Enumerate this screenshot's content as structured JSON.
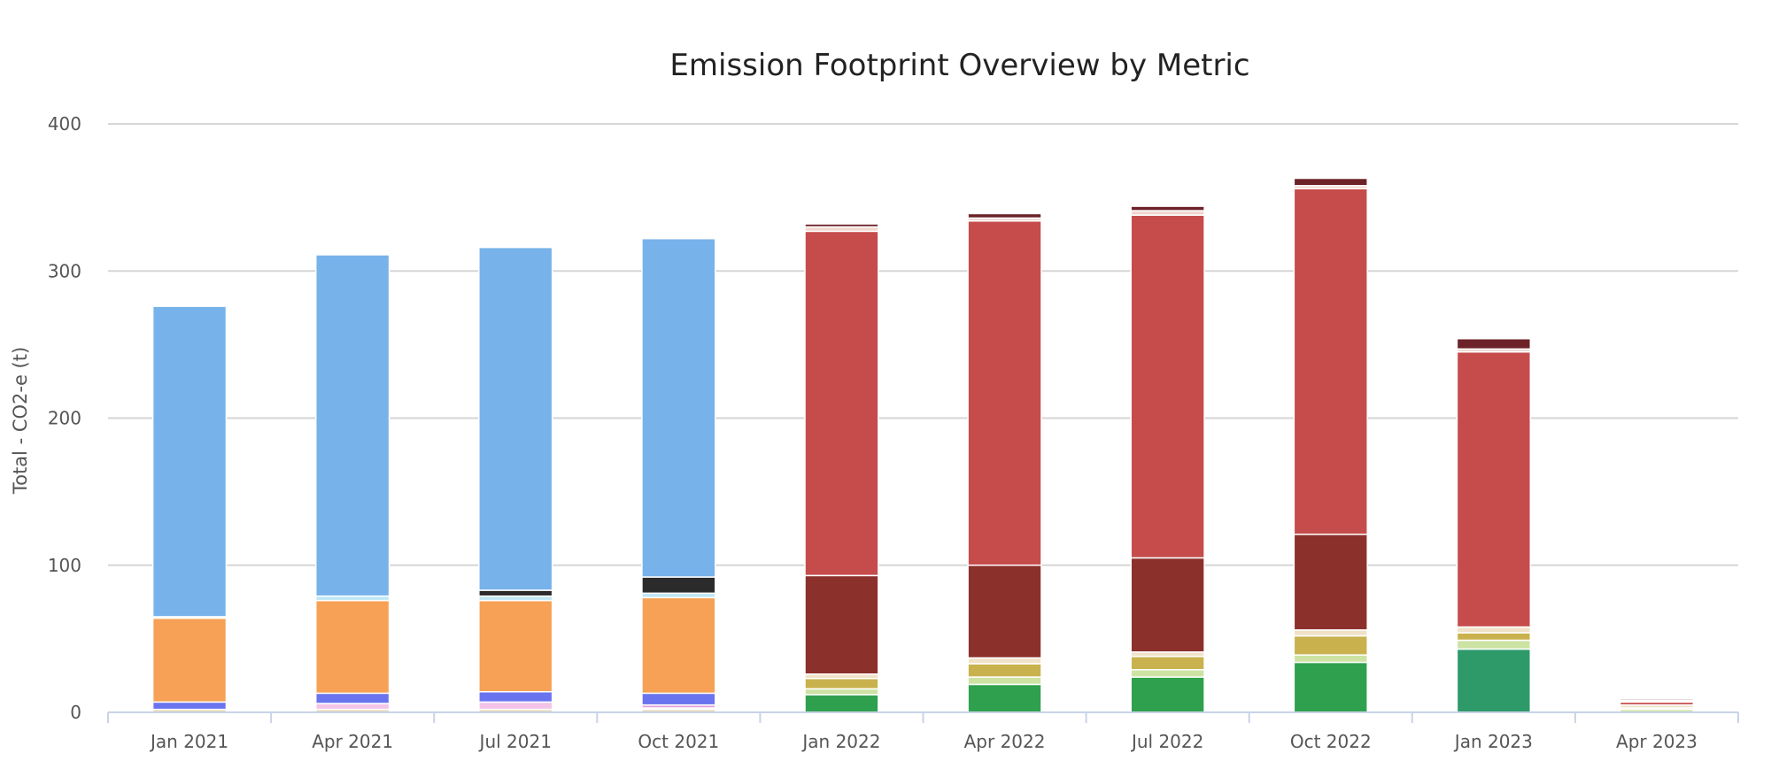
{
  "chart_data": {
    "type": "bar",
    "stacked": true,
    "title": "Emission Footprint Overview by Metric",
    "xlabel": "",
    "ylabel": "Total - CO2-e (t)",
    "ylim": [
      0,
      400
    ],
    "yticks": [
      0,
      100,
      200,
      300,
      400
    ],
    "grid": true,
    "legend": "none",
    "categories": [
      "Jan 2021",
      "Apr 2021",
      "Jul 2021",
      "Oct 2021",
      "Jan 2022",
      "Apr 2022",
      "Jul 2022",
      "Oct 2022",
      "Jan 2023",
      "Apr 2023"
    ],
    "series": [
      {
        "color": "#e9d8b4",
        "values": [
          2,
          2,
          2,
          2,
          0,
          0,
          0,
          0,
          0,
          0
        ]
      },
      {
        "color": "#f3c4e8",
        "values": [
          0,
          4,
          5,
          1,
          0,
          0,
          0,
          0,
          0,
          0
        ]
      },
      {
        "color": "#e8a0d8",
        "values": [
          0,
          0,
          0,
          2,
          0,
          0,
          0,
          0,
          0,
          0
        ]
      },
      {
        "color": "#6b74ef",
        "values": [
          5,
          7,
          7,
          8,
          0,
          0,
          0,
          0,
          0,
          0
        ]
      },
      {
        "color": "#f6a155",
        "values": [
          57,
          63,
          62,
          65,
          0,
          0,
          0,
          0,
          0,
          0
        ]
      },
      {
        "color": "#bfe6f4",
        "values": [
          1,
          3,
          3,
          3,
          0,
          0,
          0,
          0,
          0,
          0
        ]
      },
      {
        "color": "#2b2b2b",
        "values": [
          0,
          0,
          4,
          11,
          0,
          0,
          0,
          0,
          0,
          0
        ]
      },
      {
        "color": "#77b2ea",
        "values": [
          211,
          232,
          233,
          230,
          0,
          0,
          0,
          0,
          0,
          0
        ]
      },
      {
        "color": "#2fa14e",
        "values": [
          0,
          0,
          0,
          0,
          12,
          19,
          24,
          34,
          0,
          0
        ]
      },
      {
        "color": "#2e9a6a",
        "values": [
          0,
          0,
          0,
          0,
          0,
          0,
          0,
          0,
          43,
          0
        ]
      },
      {
        "color": "#cde3a4",
        "values": [
          0,
          0,
          0,
          0,
          4,
          5,
          5,
          5,
          6,
          2
        ]
      },
      {
        "color": "#c9b24e",
        "values": [
          0,
          0,
          0,
          0,
          7,
          9,
          9,
          13,
          5,
          1
        ]
      },
      {
        "color": "#f0e2c8",
        "values": [
          0,
          0,
          0,
          0,
          3,
          4,
          3,
          4,
          4,
          2
        ]
      },
      {
        "color": "#8c302c",
        "values": [
          0,
          0,
          0,
          0,
          67,
          63,
          64,
          65,
          0,
          0
        ]
      },
      {
        "color": "#c64c4c",
        "values": [
          0,
          0,
          0,
          0,
          234,
          234,
          233,
          235,
          187,
          2
        ]
      },
      {
        "color": "#f0d7cf",
        "values": [
          0,
          0,
          0,
          0,
          3,
          2,
          3,
          2,
          2,
          1
        ]
      },
      {
        "color": "#6c2228",
        "values": [
          0,
          0,
          0,
          0,
          2,
          3,
          3,
          5,
          7,
          1
        ]
      }
    ]
  }
}
